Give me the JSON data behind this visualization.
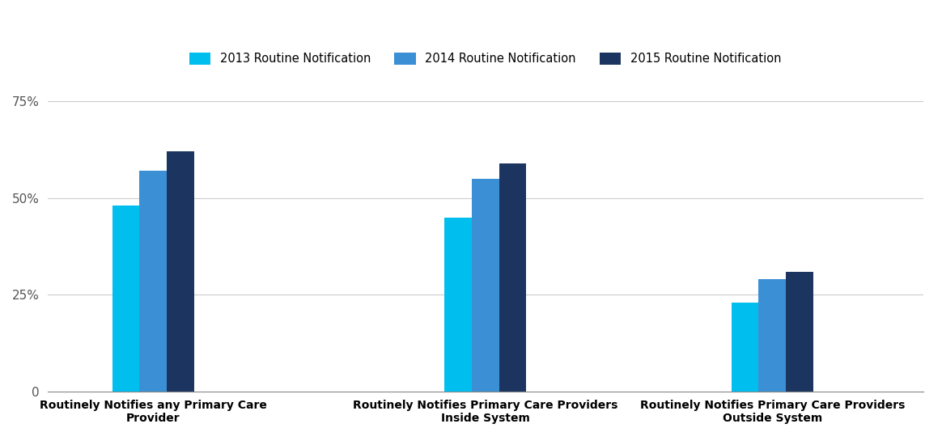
{
  "categories": [
    "Routinely Notifies any Primary Care\nProvider",
    "Routinely Notifies Primary Care Providers\nInside System",
    "Routinely Notifies Primary Care Providers\nOutside System"
  ],
  "series": [
    {
      "label": "2013 Routine Notification",
      "values": [
        0.48,
        0.45,
        0.23
      ],
      "color": "#00BFEF"
    },
    {
      "label": "2014 Routine Notification",
      "values": [
        0.57,
        0.55,
        0.29
      ],
      "color": "#3B8FD4"
    },
    {
      "label": "2015 Routine Notification",
      "values": [
        0.62,
        0.59,
        0.31
      ],
      "color": "#1C3560"
    }
  ],
  "ylim": [
    0,
    0.8
  ],
  "yticks": [
    0,
    0.25,
    0.5,
    0.75
  ],
  "ytick_labels": [
    "0",
    "25%",
    "50%",
    "75%"
  ],
  "bar_width": 0.18,
  "group_positions": [
    1.0,
    3.2,
    5.1
  ],
  "xlim": [
    0.3,
    6.1
  ],
  "background_color": "#ffffff",
  "grid_color": "#cccccc",
  "legend_ncol": 3,
  "figsize": [
    11.64,
    5.5
  ],
  "dpi": 100
}
